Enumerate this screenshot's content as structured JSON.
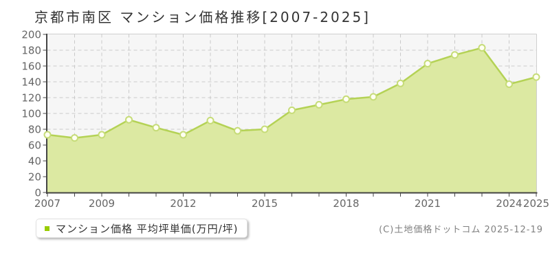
{
  "page": {
    "title": "京都市南区 マンション価格推移[2007-2025]",
    "copyright": "(C)土地価格ドットコム 2025-12-19"
  },
  "legend": {
    "label": "マンション価格 平均坪単価(万円/坪)",
    "marker_color": "#99cc00"
  },
  "chart_data": {
    "type": "area",
    "title": "京都市南区 マンション価格推移[2007-2025]",
    "x": [
      2007,
      2008,
      2009,
      2010,
      2011,
      2012,
      2013,
      2014,
      2015,
      2016,
      2017,
      2018,
      2019,
      2020,
      2021,
      2022,
      2023,
      2024,
      2025
    ],
    "series": [
      {
        "name": "マンション価格 平均坪単価(万円/坪)",
        "values": [
          73,
          69,
          73,
          92,
          82,
          73,
          91,
          78,
          80,
          104,
          111,
          118,
          121,
          138,
          163,
          174,
          183,
          137,
          146
        ]
      }
    ],
    "xlabel": "",
    "ylabel": "平均坪単価(万円/坪)",
    "ylim": [
      0,
      200
    ],
    "ytick_step": 20,
    "xtick_labels": [
      "2007",
      "2009",
      "2012",
      "2015",
      "2018",
      "2021",
      "2024",
      "2025"
    ],
    "grid": true,
    "legend_position": "bottom-left",
    "colors": {
      "line": "#b4d255",
      "fill": "#dce9a2",
      "marker_fill": "#fffff2",
      "marker_stroke": "#c6dc78",
      "grid": "#c9c9c9",
      "plot_bg": "#f6f6f6",
      "border": "#cfcfcf",
      "axis": "#444444",
      "tick_label": "#666666"
    }
  }
}
